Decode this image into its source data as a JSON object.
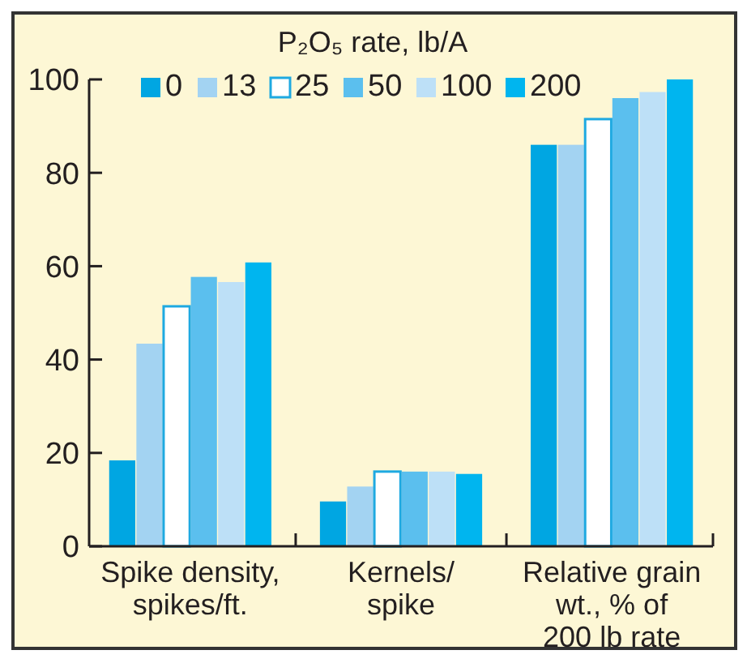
{
  "chart_data": {
    "type": "bar",
    "legend_title": "P₂O₅ rate, lb/A",
    "categories": [
      "Spike density,\nspikes/ft.",
      "Kernels/\nspike",
      "Relative grain\nwt., % of\n200 lb rate"
    ],
    "series": [
      {
        "name": "0",
        "color": "#00a6e2",
        "values": [
          18.4,
          9.6,
          86
        ]
      },
      {
        "name": "13",
        "color": "#a3d3f2",
        "values": [
          43.4,
          12.8,
          86
        ]
      },
      {
        "name": "25",
        "color": "#ffffff",
        "values": [
          51.4,
          16,
          91.5
        ]
      },
      {
        "name": "50",
        "color": "#5bbfee",
        "values": [
          57.7,
          16,
          96
        ]
      },
      {
        "name": "100",
        "color": "#bde0f7",
        "values": [
          56.6,
          16,
          97.3
        ]
      },
      {
        "name": "200",
        "color": "#00b5ef",
        "values": [
          60.8,
          15.5,
          100
        ]
      }
    ],
    "ylim": [
      0,
      100
    ],
    "yticks": [
      0,
      20,
      40,
      60,
      80,
      100
    ],
    "legend": "top",
    "grid": false
  }
}
